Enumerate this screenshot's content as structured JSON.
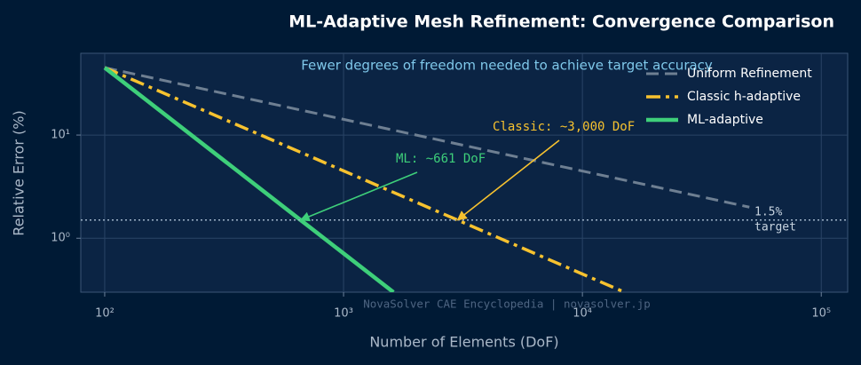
{
  "chart_data": {
    "type": "line",
    "title": "ML-Adaptive Mesh Refinement: Convergence Comparison",
    "subtitle": "Fewer degrees of freedom needed to achieve target accuracy",
    "x_label": "Number of Elements (DoF)",
    "y_label": "Relative Error (%)",
    "xscale": "log",
    "yscale": "log",
    "xlim": [
      79.4,
      129000
    ],
    "ylim": [
      0.3,
      62
    ],
    "xticks": [
      {
        "value": 100,
        "label": "10²"
      },
      {
        "value": 1000,
        "label": "10³"
      },
      {
        "value": 10000,
        "label": "10⁴"
      },
      {
        "value": 100000,
        "label": "10⁵"
      }
    ],
    "yticks": [
      {
        "value": 1,
        "label": "10⁰"
      },
      {
        "value": 10,
        "label": "10¹"
      }
    ],
    "grid": true,
    "legend": "upper right",
    "series": [
      {
        "name": "Uniform Refinement",
        "color": "#6e7f92",
        "linestyle": "dashed",
        "linewidth": 3,
        "x": [
          100,
          50000
        ],
        "values": [
          45,
          2
        ]
      },
      {
        "name": "Classic h-adaptive",
        "color": "#f7c22f",
        "linestyle": "dashdot",
        "linewidth": 3.5,
        "x": [
          100,
          3000,
          15000
        ],
        "values": [
          45,
          1.5,
          0.3
        ]
      },
      {
        "name": "ML-adaptive",
        "color": "#3ecf7a",
        "linestyle": "solid",
        "linewidth": 4.5,
        "x": [
          100,
          661,
          1618
        ],
        "values": [
          45,
          1.5,
          0.3
        ]
      }
    ],
    "target": {
      "value": 1.5,
      "label": [
        "1.5%",
        "target"
      ]
    },
    "annotations": [
      {
        "text": "ML: ~661 DoF",
        "x": 661,
        "y": 1.5,
        "color": "#3ecf7a"
      },
      {
        "text": "Classic: ~3,000 DoF",
        "x": 3000,
        "y": 1.5,
        "color": "#f7c22f"
      }
    ],
    "watermark": "NovaSolver CAE Encyclopedia  |  novasolver.jp"
  }
}
